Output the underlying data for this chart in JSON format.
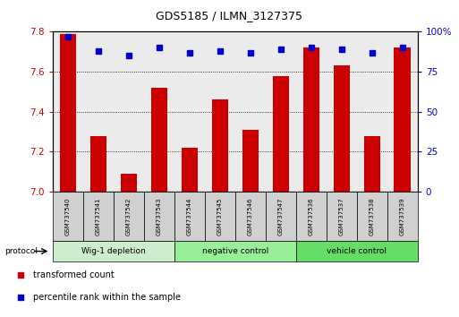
{
  "title": "GDS5185 / ILMN_3127375",
  "samples": [
    "GSM737540",
    "GSM737541",
    "GSM737542",
    "GSM737543",
    "GSM737544",
    "GSM737545",
    "GSM737546",
    "GSM737547",
    "GSM737536",
    "GSM737537",
    "GSM737538",
    "GSM737539"
  ],
  "bar_values": [
    7.79,
    7.28,
    7.09,
    7.52,
    7.22,
    7.46,
    7.31,
    7.58,
    7.72,
    7.63,
    7.28,
    7.72
  ],
  "percentile_values": [
    97,
    88,
    85,
    90,
    87,
    88,
    87,
    89,
    90,
    89,
    87,
    90
  ],
  "bar_color": "#cc0000",
  "percentile_color": "#0000cc",
  "ylim_left": [
    7.0,
    7.8
  ],
  "ylim_right": [
    0,
    100
  ],
  "yticks_left": [
    7.0,
    7.2,
    7.4,
    7.6,
    7.8
  ],
  "yticks_right": [
    0,
    25,
    50,
    75,
    100
  ],
  "groups": [
    {
      "label": "Wig-1 depletion",
      "start": 0,
      "end": 4
    },
    {
      "label": "negative control",
      "start": 4,
      "end": 8
    },
    {
      "label": "vehicle control",
      "start": 8,
      "end": 12
    }
  ],
  "group_colors": [
    "#cceecc",
    "#99ee99",
    "#66dd66"
  ],
  "protocol_label": "protocol",
  "legend_items": [
    {
      "label": "transformed count",
      "color": "#cc0000"
    },
    {
      "label": "percentile rank within the sample",
      "color": "#0000cc"
    }
  ],
  "plot_bg_color": "#ebebeb",
  "tick_color_left": "#cc0000",
  "tick_color_right": "#0000cc",
  "bar_bottom": 7.0,
  "sample_box_color": "#d0d0d0"
}
